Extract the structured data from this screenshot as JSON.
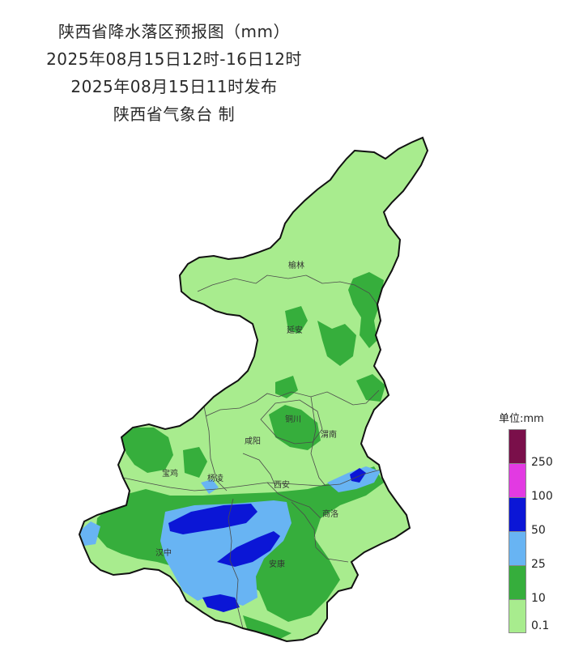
{
  "header": {
    "title": "陕西省降水落区预报图（mm）",
    "period": "2025年08月15日12时-16日12时",
    "issued": "2025年08月15日11时发布",
    "producer": "陕西省气象台 制"
  },
  "cities": [
    {
      "id": "yulin",
      "name": "榆林"
    },
    {
      "id": "yanan",
      "name": "延安"
    },
    {
      "id": "tongchuan",
      "name": "铜川"
    },
    {
      "id": "weinan",
      "name": "渭南"
    },
    {
      "id": "xianyang",
      "name": "咸阳"
    },
    {
      "id": "baoji",
      "name": "宝鸡"
    },
    {
      "id": "yangling",
      "name": "杨凌"
    },
    {
      "id": "xian",
      "name": "西安"
    },
    {
      "id": "shangluo",
      "name": "商洛"
    },
    {
      "id": "hanzhong",
      "name": "汉中"
    },
    {
      "id": "ankang",
      "name": "安康"
    }
  ],
  "legend": {
    "title": "单位:mm",
    "swatches": [
      {
        "range": "250+",
        "color": "#7a0f4a"
      },
      {
        "range": "100-250",
        "color": "#e23ae2"
      },
      {
        "range": "50-100",
        "color": "#0b16d6"
      },
      {
        "range": "25-50",
        "color": "#68b4f3"
      },
      {
        "range": "10-25",
        "color": "#36ae3c"
      },
      {
        "range": "0.1-10",
        "color": "#a8ec8e"
      }
    ],
    "ticks": [
      "250",
      "100",
      "50",
      "25",
      "10",
      "0.1"
    ]
  },
  "colors": {
    "light_green": "#a8ec8e",
    "green": "#36ae3c",
    "light_blue": "#68b4f3",
    "blue": "#0b16d6",
    "magenta": "#e23ae2",
    "purple": "#7a0f4a",
    "boundary": "#555555"
  }
}
